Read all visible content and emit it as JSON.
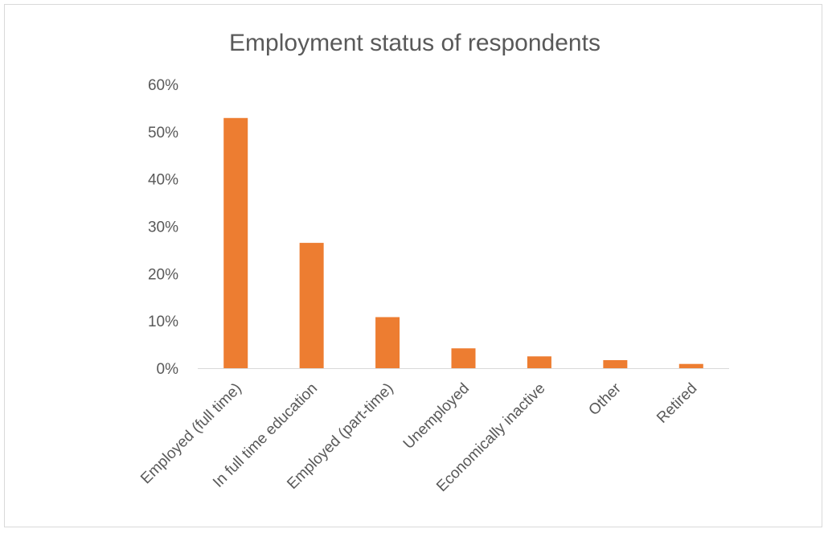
{
  "chart_data": {
    "type": "bar",
    "title": "Employment status of respondents",
    "categories": [
      "Employed (full time)",
      "In full time education",
      "Employed (part-time)",
      "Unemployed",
      "Economically inactive",
      "Other",
      "Retired"
    ],
    "values": [
      0.529,
      0.265,
      0.108,
      0.042,
      0.025,
      0.017,
      0.009
    ],
    "ylim": [
      0,
      0.6
    ],
    "yticks": [
      "0%",
      "10%",
      "20%",
      "30%",
      "40%",
      "50%",
      "60%"
    ],
    "xlabel": "",
    "ylabel": "",
    "grid": false,
    "legend": "none",
    "bar_color": "#ED7D31",
    "axis_color": "#d9d9d9"
  }
}
